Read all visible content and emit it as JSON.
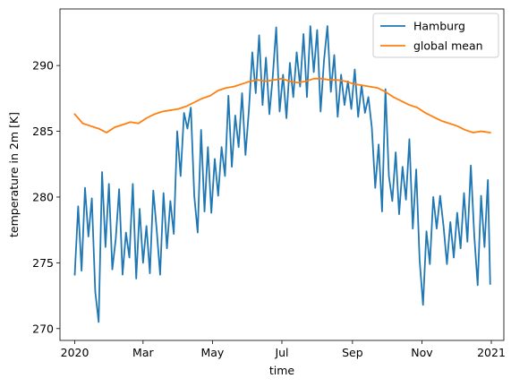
{
  "chart_data": {
    "type": "line",
    "title": "",
    "xlabel": "time",
    "ylabel": "temperature in 2m [K]",
    "xlim": [
      "2019-12-19",
      "2021-01-12"
    ],
    "ylim": [
      269.1,
      294.3
    ],
    "x_ticks": [
      {
        "date": "2020-01-01",
        "label": "2020"
      },
      {
        "date": "2020-03-01",
        "label": "Mar"
      },
      {
        "date": "2020-05-01",
        "label": "May"
      },
      {
        "date": "2020-07-01",
        "label": "Jul"
      },
      {
        "date": "2020-09-01",
        "label": "Sep"
      },
      {
        "date": "2020-11-01",
        "label": "Nov"
      },
      {
        "date": "2021-01-01",
        "label": "2021"
      }
    ],
    "y_ticks": [
      270,
      275,
      280,
      285,
      290
    ],
    "grid": false,
    "legend_position": "top-right",
    "series": [
      {
        "name": "Hamburg",
        "color": "#1f77b4",
        "points": [
          [
            "2020-01-01",
            274.1
          ],
          [
            "2020-01-04",
            279.3
          ],
          [
            "2020-01-07",
            274.4
          ],
          [
            "2020-01-10",
            280.7
          ],
          [
            "2020-01-13",
            277.0
          ],
          [
            "2020-01-16",
            279.9
          ],
          [
            "2020-01-19",
            272.8
          ],
          [
            "2020-01-22",
            270.5
          ],
          [
            "2020-01-25",
            281.9
          ],
          [
            "2020-01-28",
            276.2
          ],
          [
            "2020-01-31",
            281.0
          ],
          [
            "2020-02-03",
            274.5
          ],
          [
            "2020-02-06",
            276.8
          ],
          [
            "2020-02-09",
            280.6
          ],
          [
            "2020-02-12",
            274.1
          ],
          [
            "2020-02-15",
            277.3
          ],
          [
            "2020-02-18",
            275.4
          ],
          [
            "2020-02-21",
            281.0
          ],
          [
            "2020-02-24",
            273.8
          ],
          [
            "2020-02-27",
            279.1
          ],
          [
            "2020-03-01",
            275.0
          ],
          [
            "2020-03-04",
            277.8
          ],
          [
            "2020-03-07",
            274.2
          ],
          [
            "2020-03-10",
            280.5
          ],
          [
            "2020-03-13",
            277.5
          ],
          [
            "2020-03-16",
            274.1
          ],
          [
            "2020-03-19",
            280.3
          ],
          [
            "2020-03-22",
            276.1
          ],
          [
            "2020-03-25",
            279.7
          ],
          [
            "2020-03-28",
            277.2
          ],
          [
            "2020-03-31",
            285.0
          ],
          [
            "2020-04-03",
            281.6
          ],
          [
            "2020-04-06",
            286.4
          ],
          [
            "2020-04-09",
            285.2
          ],
          [
            "2020-04-12",
            286.8
          ],
          [
            "2020-04-15",
            280.1
          ],
          [
            "2020-04-18",
            277.3
          ],
          [
            "2020-04-21",
            285.1
          ],
          [
            "2020-04-24",
            278.9
          ],
          [
            "2020-04-27",
            283.8
          ],
          [
            "2020-04-30",
            278.8
          ],
          [
            "2020-05-03",
            282.9
          ],
          [
            "2020-05-06",
            280.1
          ],
          [
            "2020-05-09",
            283.8
          ],
          [
            "2020-05-12",
            281.6
          ],
          [
            "2020-05-15",
            287.7
          ],
          [
            "2020-05-18",
            282.3
          ],
          [
            "2020-05-21",
            286.2
          ],
          [
            "2020-05-24",
            283.8
          ],
          [
            "2020-05-27",
            287.9
          ],
          [
            "2020-05-30",
            283.2
          ],
          [
            "2020-06-02",
            286.6
          ],
          [
            "2020-06-05",
            291.0
          ],
          [
            "2020-06-08",
            287.9
          ],
          [
            "2020-06-11",
            292.3
          ],
          [
            "2020-06-14",
            287.0
          ],
          [
            "2020-06-17",
            290.6
          ],
          [
            "2020-06-20",
            286.3
          ],
          [
            "2020-06-23",
            289.2
          ],
          [
            "2020-06-26",
            292.9
          ],
          [
            "2020-06-29",
            286.5
          ],
          [
            "2020-07-02",
            289.3
          ],
          [
            "2020-07-05",
            286.0
          ],
          [
            "2020-07-08",
            290.2
          ],
          [
            "2020-07-11",
            287.6
          ],
          [
            "2020-07-14",
            291.0
          ],
          [
            "2020-07-17",
            288.4
          ],
          [
            "2020-07-20",
            292.4
          ],
          [
            "2020-07-23",
            287.6
          ],
          [
            "2020-07-26",
            293.0
          ],
          [
            "2020-07-29",
            289.5
          ],
          [
            "2020-08-01",
            292.7
          ],
          [
            "2020-08-04",
            286.5
          ],
          [
            "2020-08-07",
            290.4
          ],
          [
            "2020-08-10",
            293.0
          ],
          [
            "2020-08-13",
            288.0
          ],
          [
            "2020-08-16",
            290.8
          ],
          [
            "2020-08-19",
            286.1
          ],
          [
            "2020-08-22",
            289.3
          ],
          [
            "2020-08-25",
            287.0
          ],
          [
            "2020-08-28",
            288.8
          ],
          [
            "2020-08-31",
            286.7
          ],
          [
            "2020-09-03",
            289.7
          ],
          [
            "2020-09-06",
            286.1
          ],
          [
            "2020-09-09",
            288.5
          ],
          [
            "2020-09-12",
            286.4
          ],
          [
            "2020-09-15",
            287.6
          ],
          [
            "2020-09-18",
            285.3
          ],
          [
            "2020-09-21",
            280.7
          ],
          [
            "2020-09-24",
            284.0
          ],
          [
            "2020-09-27",
            278.9
          ],
          [
            "2020-09-30",
            288.2
          ],
          [
            "2020-10-03",
            281.6
          ],
          [
            "2020-10-06",
            279.7
          ],
          [
            "2020-10-09",
            283.4
          ],
          [
            "2020-10-12",
            278.7
          ],
          [
            "2020-10-15",
            282.3
          ],
          [
            "2020-10-18",
            279.8
          ],
          [
            "2020-10-21",
            284.4
          ],
          [
            "2020-10-24",
            277.6
          ],
          [
            "2020-10-27",
            282.1
          ],
          [
            "2020-10-30",
            275.2
          ],
          [
            "2020-11-02",
            271.8
          ],
          [
            "2020-11-05",
            277.4
          ],
          [
            "2020-11-08",
            274.9
          ],
          [
            "2020-11-11",
            280.0
          ],
          [
            "2020-11-14",
            277.6
          ],
          [
            "2020-11-17",
            280.1
          ],
          [
            "2020-11-20",
            277.8
          ],
          [
            "2020-11-23",
            274.9
          ],
          [
            "2020-11-26",
            278.1
          ],
          [
            "2020-11-29",
            275.4
          ],
          [
            "2020-12-02",
            278.8
          ],
          [
            "2020-12-05",
            276.1
          ],
          [
            "2020-12-08",
            280.3
          ],
          [
            "2020-12-11",
            276.6
          ],
          [
            "2020-12-14",
            282.4
          ],
          [
            "2020-12-17",
            277.1
          ],
          [
            "2020-12-20",
            273.3
          ],
          [
            "2020-12-23",
            280.1
          ],
          [
            "2020-12-26",
            276.2
          ],
          [
            "2020-12-29",
            281.3
          ],
          [
            "2020-12-31",
            273.4
          ]
        ]
      },
      {
        "name": "global mean",
        "color": "#ff7f0e",
        "points": [
          [
            "2020-01-01",
            286.3
          ],
          [
            "2020-01-08",
            285.6
          ],
          [
            "2020-01-15",
            285.4
          ],
          [
            "2020-01-22",
            285.2
          ],
          [
            "2020-01-29",
            284.9
          ],
          [
            "2020-02-05",
            285.3
          ],
          [
            "2020-02-12",
            285.5
          ],
          [
            "2020-02-19",
            285.7
          ],
          [
            "2020-02-26",
            285.6
          ],
          [
            "2020-03-04",
            286.0
          ],
          [
            "2020-03-11",
            286.3
          ],
          [
            "2020-03-18",
            286.5
          ],
          [
            "2020-03-25",
            286.6
          ],
          [
            "2020-04-01",
            286.7
          ],
          [
            "2020-04-08",
            286.9
          ],
          [
            "2020-04-15",
            287.2
          ],
          [
            "2020-04-22",
            287.5
          ],
          [
            "2020-04-29",
            287.7
          ],
          [
            "2020-05-06",
            288.1
          ],
          [
            "2020-05-13",
            288.3
          ],
          [
            "2020-05-20",
            288.4
          ],
          [
            "2020-05-27",
            288.6
          ],
          [
            "2020-06-03",
            288.8
          ],
          [
            "2020-06-10",
            288.9
          ],
          [
            "2020-06-17",
            288.8
          ],
          [
            "2020-06-24",
            288.9
          ],
          [
            "2020-07-01",
            289.0
          ],
          [
            "2020-07-08",
            288.8
          ],
          [
            "2020-07-15",
            288.7
          ],
          [
            "2020-07-22",
            288.8
          ],
          [
            "2020-07-29",
            289.0
          ],
          [
            "2020-08-05",
            289.0
          ],
          [
            "2020-08-12",
            288.9
          ],
          [
            "2020-08-19",
            288.9
          ],
          [
            "2020-08-26",
            288.8
          ],
          [
            "2020-09-02",
            288.6
          ],
          [
            "2020-09-09",
            288.5
          ],
          [
            "2020-09-16",
            288.4
          ],
          [
            "2020-09-23",
            288.3
          ],
          [
            "2020-09-30",
            288.0
          ],
          [
            "2020-10-07",
            287.6
          ],
          [
            "2020-10-14",
            287.3
          ],
          [
            "2020-10-21",
            287.0
          ],
          [
            "2020-10-28",
            286.8
          ],
          [
            "2020-11-04",
            286.4
          ],
          [
            "2020-11-11",
            286.1
          ],
          [
            "2020-11-18",
            285.8
          ],
          [
            "2020-11-25",
            285.6
          ],
          [
            "2020-12-02",
            285.4
          ],
          [
            "2020-12-09",
            285.1
          ],
          [
            "2020-12-16",
            284.9
          ],
          [
            "2020-12-23",
            285.0
          ],
          [
            "2020-12-31",
            284.9
          ]
        ]
      }
    ]
  }
}
